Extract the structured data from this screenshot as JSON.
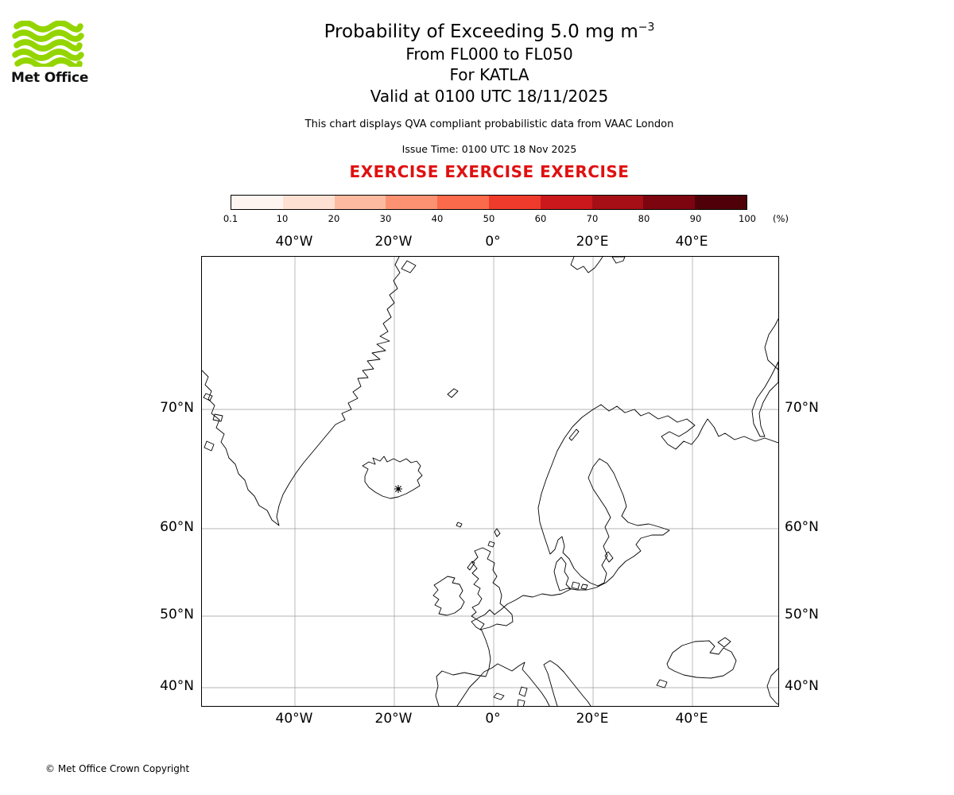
{
  "branding": {
    "logo_text": "Met Office"
  },
  "header": {
    "title_main": "Probability of Exceeding 5.0 mg m",
    "title_superscript": "−3",
    "flight_levels": "From FL000 to FL050",
    "volcano_line": "For KATLA",
    "valid_line": "Valid at 0100 UTC 18/11/2025",
    "description": "This chart displays QVA compliant probabilistic data from VAAC London",
    "issue_time": "Issue Time: 0100 UTC 18 Nov 2025",
    "exercise_banner": "EXERCISE EXERCISE EXERCISE"
  },
  "colorbar": {
    "tick_labels": [
      "0.1",
      "10",
      "20",
      "30",
      "40",
      "50",
      "60",
      "70",
      "80",
      "90",
      "100"
    ],
    "unit_label": "(%)",
    "segment_colors": [
      "#fff5f0",
      "#fee0d2",
      "#fcbba1",
      "#fc9272",
      "#fb6a4a",
      "#ef3b2c",
      "#cb181d",
      "#a50f15",
      "#7c0510",
      "#4f0008"
    ]
  },
  "map": {
    "x_tick_labels": [
      "40°W",
      "20°W",
      "0°",
      "20°E",
      "40°E"
    ],
    "y_tick_labels": [
      "70°N",
      "60°N",
      "50°N",
      "40°N"
    ],
    "volcano_name": "KATLA"
  },
  "footer": {
    "copyright": "© Met Office Crown Copyright"
  },
  "colors": {
    "exercise_red": "#e01010",
    "logo_green": "#94d500"
  }
}
